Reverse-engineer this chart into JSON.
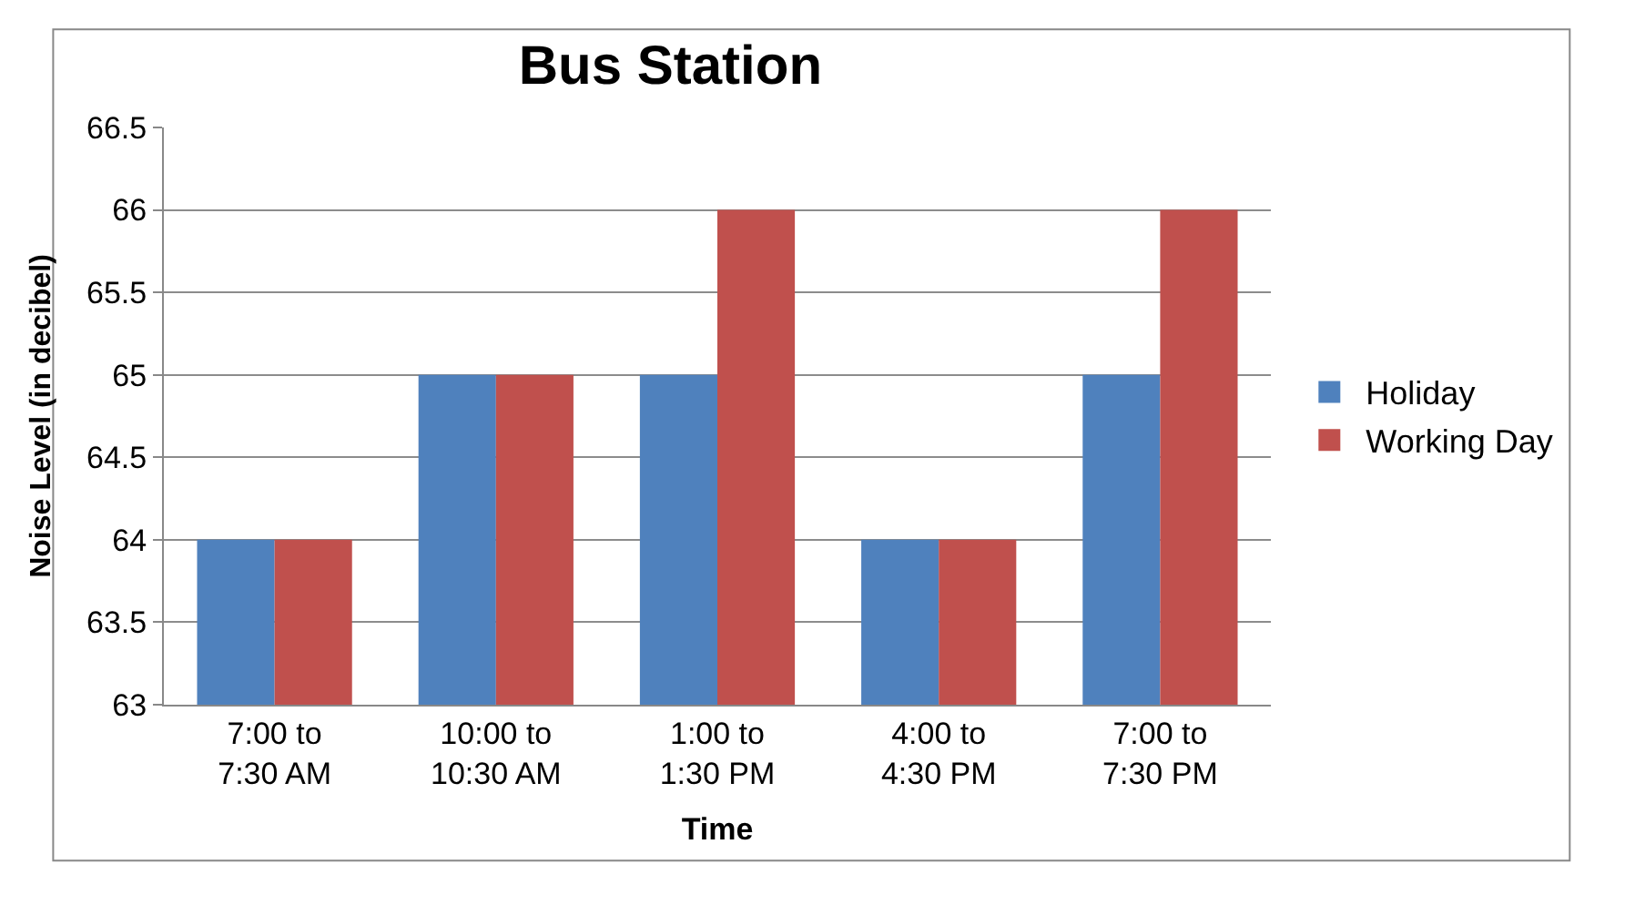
{
  "chart_data": {
    "type": "bar",
    "title": "Bus Station",
    "xlabel": "Time",
    "ylabel": "Noise Level (in decibel)",
    "categories": [
      "7:00 to\n7:30 AM",
      "10:00 to\n10:30 AM",
      "1:00 to\n1:30 PM",
      "4:00 to\n4:30 PM",
      "7:00 to\n7:30 PM"
    ],
    "series": [
      {
        "name": "Holiday",
        "color": "#4f81bd",
        "values": [
          64,
          65,
          65,
          64,
          65
        ]
      },
      {
        "name": "Working Day",
        "color": "#c0504d",
        "values": [
          64,
          65,
          66,
          64,
          66
        ]
      }
    ],
    "ylim": [
      63,
      66.5
    ],
    "yticks": [
      63,
      63.5,
      64,
      64.5,
      65,
      65.5,
      66,
      66.5
    ],
    "grid": "y",
    "legend": "right"
  }
}
